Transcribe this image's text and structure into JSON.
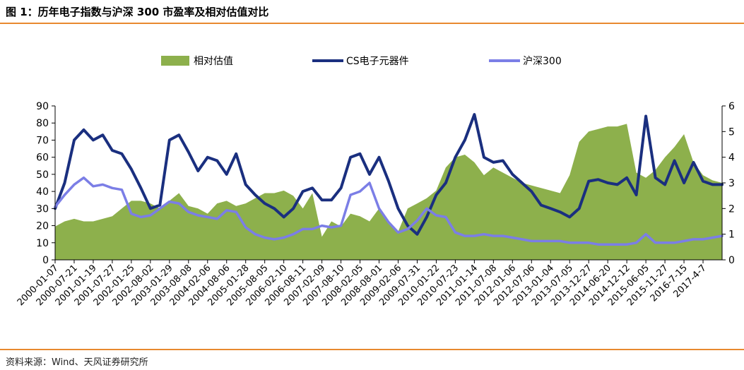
{
  "figure": {
    "title": "图 1：历年电子指数与沪深 300 市盈率及相对估值对比",
    "source": "资料来源：Wind、天风证券研究所"
  },
  "chart_data": {
    "type": "line",
    "title": "",
    "xlabel": "",
    "ylabel": "",
    "y_left_lim": [
      0,
      90
    ],
    "y_left_ticks": [
      0,
      10,
      20,
      30,
      40,
      50,
      60,
      70,
      80,
      90
    ],
    "y_right_lim": [
      0,
      6
    ],
    "y_right_ticks": [
      0,
      1,
      2,
      3,
      4,
      5,
      6
    ],
    "grid": false,
    "legend_position": "top",
    "x_tick_labels": [
      "2000-01-07",
      "2000-07-21",
      "2001-01-19",
      "2001-07-27",
      "2002-01-25",
      "2002-08-02",
      "2003-01-29",
      "2003-08-08",
      "2004-02-06",
      "2004-08-06",
      "2005-01-28",
      "2005-08-05",
      "2006-02-10",
      "2006-08-11",
      "2007-02-09",
      "2007-08-10",
      "2008-02-05",
      "2008-08-01",
      "2009-02-06",
      "2009-07-31",
      "2010-01-22",
      "2010-07-23",
      "2011-01-14",
      "2011-07-08",
      "2012-01-06",
      "2012-07-06",
      "2013-01-04",
      "2013-07-05",
      "2013-12-27",
      "2014-06-20",
      "2014-12-12",
      "2015-06-05",
      "2015-11-27",
      "2016-7-15",
      "2017-4-7"
    ],
    "x": [
      0,
      0.5,
      1,
      1.5,
      2,
      2.5,
      3,
      3.5,
      4,
      4.5,
      5,
      5.5,
      6,
      6.5,
      7,
      7.5,
      8,
      8.5,
      9,
      9.5,
      10,
      10.5,
      11,
      11.5,
      12,
      12.5,
      13,
      13.5,
      14,
      14.5,
      15,
      15.5,
      16,
      16.5,
      17,
      17.5,
      18,
      18.5,
      19,
      19.5,
      20,
      20.5,
      21,
      21.5,
      22,
      22.5,
      23,
      23.5,
      24,
      24.5,
      25,
      25.5,
      26,
      26.5,
      27,
      27.5,
      28,
      28.5,
      29,
      29.5,
      30,
      30.5,
      31,
      31.5,
      32,
      32.5,
      33,
      33.5,
      34,
      34.5,
      35
    ],
    "series": [
      {
        "name": "相对估值",
        "axis": "right",
        "render": "area",
        "color": "#8db04c",
        "values": [
          1.3,
          1.5,
          1.6,
          1.5,
          1.5,
          1.6,
          1.7,
          2.0,
          2.3,
          2.3,
          2.2,
          2.0,
          2.3,
          2.6,
          2.1,
          2.0,
          1.8,
          2.2,
          2.3,
          2.1,
          2.2,
          2.4,
          2.6,
          2.6,
          2.7,
          2.5,
          2.0,
          2.6,
          0.9,
          1.5,
          1.3,
          1.8,
          1.7,
          1.5,
          2.0,
          1.4,
          1.1,
          2.0,
          2.2,
          2.4,
          2.7,
          3.6,
          4.0,
          4.1,
          3.8,
          3.3,
          3.6,
          3.4,
          3.2,
          3.0,
          2.9,
          2.8,
          2.7,
          2.6,
          3.3,
          4.6,
          5.0,
          5.1,
          5.2,
          5.2,
          5.3,
          3.4,
          3.2,
          3.5,
          4.0,
          4.4,
          4.9,
          3.8,
          3.3,
          3.1,
          3.0
        ]
      },
      {
        "name": "CS电子元器件",
        "axis": "left",
        "render": "line",
        "color": "#1a2f7f",
        "values": [
          30,
          45,
          70,
          76,
          70,
          73,
          64,
          62,
          53,
          42,
          30,
          32,
          70,
          73,
          63,
          52,
          60,
          58,
          50,
          62,
          44,
          38,
          33,
          30,
          25,
          30,
          40,
          42,
          35,
          35,
          42,
          60,
          62,
          50,
          60,
          46,
          30,
          20,
          15,
          25,
          38,
          45,
          60,
          70,
          85,
          60,
          57,
          58,
          50,
          45,
          40,
          32,
          30,
          28,
          25,
          30,
          46,
          47,
          45,
          44,
          48,
          38,
          84,
          48,
          44,
          58,
          45,
          57,
          46,
          44,
          44
        ]
      },
      {
        "name": "沪深300",
        "axis": "left",
        "render": "line",
        "color": "#7b7ee6",
        "values": [
          31,
          38,
          44,
          48,
          43,
          44,
          42,
          41,
          27,
          25,
          26,
          30,
          34,
          33,
          28,
          26,
          25,
          24,
          29,
          28,
          19,
          15,
          13,
          12,
          13,
          15,
          18,
          18,
          20,
          19,
          20,
          38,
          40,
          45,
          30,
          22,
          16,
          18,
          23,
          30,
          26,
          25,
          16,
          14,
          14,
          15,
          14,
          14,
          13,
          12,
          11,
          11,
          11,
          11,
          10,
          10,
          10,
          9,
          9,
          9,
          9,
          10,
          15,
          10,
          10,
          10,
          11,
          12,
          12,
          13,
          14
        ]
      }
    ]
  }
}
